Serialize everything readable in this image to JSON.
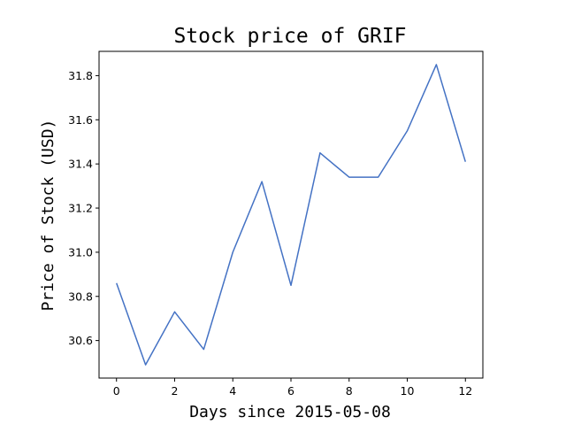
{
  "chart_data": {
    "type": "line",
    "title": "Stock price of GRIF",
    "xlabel": "Days since 2015-05-08",
    "ylabel": "Price of Stock (USD)",
    "x": [
      0,
      1,
      2,
      3,
      4,
      5,
      6,
      7,
      8,
      9,
      10,
      11,
      12
    ],
    "series": [
      {
        "values": [
          30.86,
          30.49,
          30.73,
          30.56,
          31.0,
          31.32,
          30.85,
          31.45,
          31.34,
          31.34,
          31.55,
          31.85,
          31.41
        ]
      }
    ],
    "xlim": [
      -0.6,
      12.6
    ],
    "ylim": [
      30.43,
      31.91
    ],
    "xticks": [
      0,
      2,
      4,
      6,
      8,
      10,
      12
    ],
    "yticks": [
      30.6,
      30.8,
      31.0,
      31.2,
      31.4,
      31.6,
      31.8
    ],
    "xtick_labels": [
      "0",
      "2",
      "4",
      "6",
      "8",
      "10",
      "12"
    ],
    "ytick_labels": [
      "30.6",
      "30.8",
      "31.0",
      "31.2",
      "31.4",
      "31.6",
      "31.8"
    ],
    "grid": false,
    "line_color": "#4472c4"
  }
}
